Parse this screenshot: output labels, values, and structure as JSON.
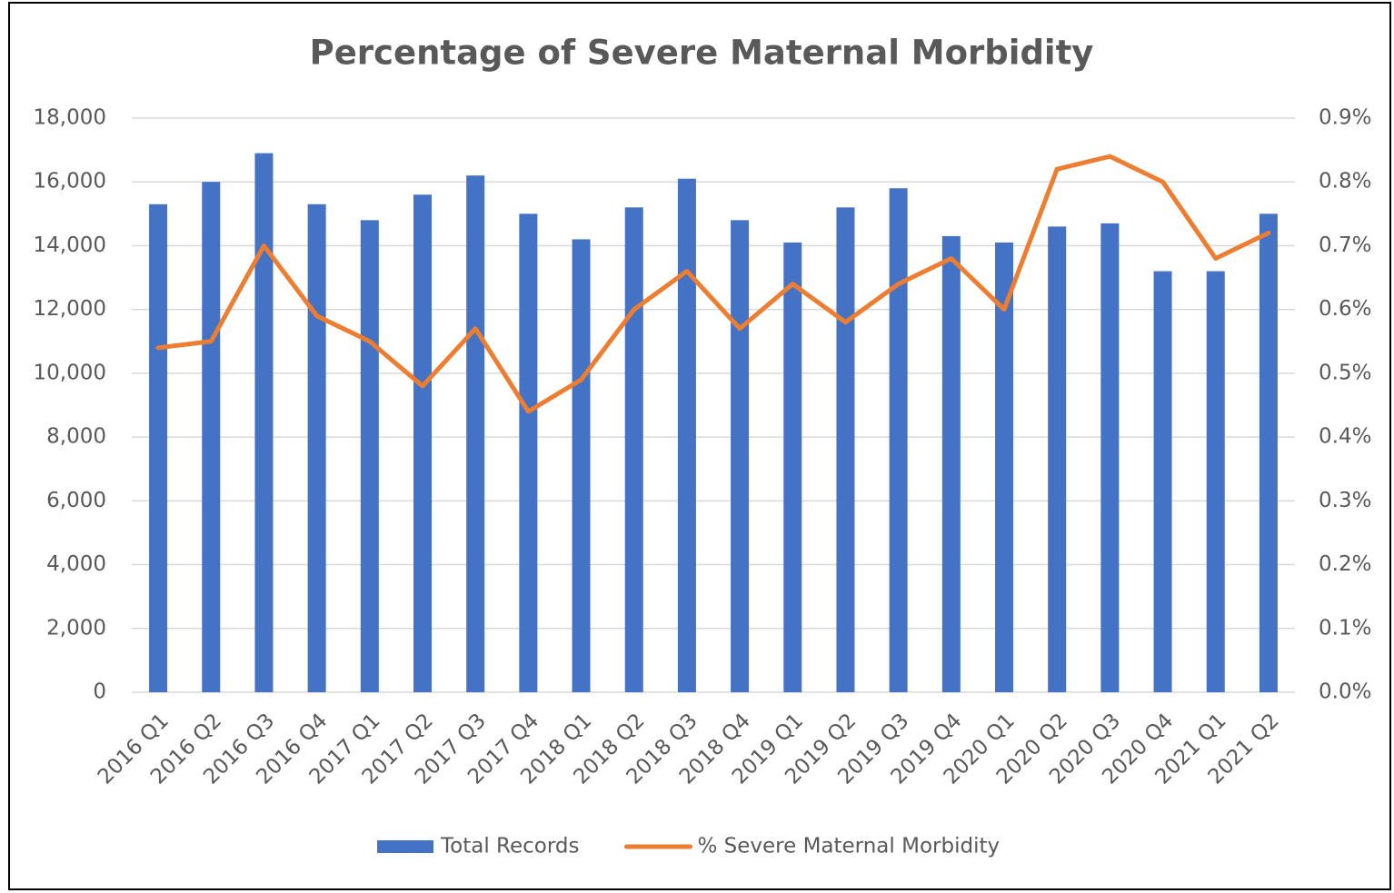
{
  "chart_data": {
    "type": "bar_line",
    "title": "Percentage of Severe Maternal Morbidity",
    "categories": [
      "2016 Q1",
      "2016 Q2",
      "2016 Q3",
      "2016 Q4",
      "2017 Q1",
      "2017 Q2",
      "2017 Q3",
      "2017 Q4",
      "2018 Q1",
      "2018 Q2",
      "2018 Q3",
      "2018 Q4",
      "2019 Q1",
      "2019 Q2",
      "2019 Q3",
      "2019 Q4",
      "2020 Q1",
      "2020 Q2",
      "2020 Q3",
      "2020 Q4",
      "2021 Q1",
      "2021 Q2"
    ],
    "series": [
      {
        "name": "Total Records",
        "type": "bar",
        "color": "#4472c4",
        "axis": "y",
        "values": [
          15300,
          16000,
          16900,
          15300,
          14800,
          15600,
          16200,
          15000,
          14200,
          15200,
          16100,
          14800,
          14100,
          15200,
          15800,
          14300,
          14100,
          14600,
          14700,
          13200,
          13200,
          15000
        ]
      },
      {
        "name": "% Severe Maternal Morbidity",
        "type": "line",
        "color": "#ed7d31",
        "axis": "y2",
        "values": [
          0.54,
          0.55,
          0.7,
          0.59,
          0.55,
          0.48,
          0.57,
          0.44,
          0.49,
          0.6,
          0.66,
          0.57,
          0.64,
          0.58,
          0.64,
          0.68,
          0.6,
          0.82,
          0.84,
          0.8,
          0.68,
          0.72
        ]
      }
    ],
    "ylim": [
      0,
      18000
    ],
    "yticks": [
      0,
      {
        "value": 2000,
        "label": "2,000"
      },
      {
        "value": 4000,
        "label": "4,000"
      },
      {
        "value": 6000,
        "label": "6,000"
      },
      {
        "value": 8000,
        "label": "8,000"
      },
      {
        "value": 10000,
        "label": "10,000"
      },
      {
        "value": 12000,
        "label": "12,000"
      },
      {
        "value": 14000,
        "label": "14,000"
      },
      {
        "value": 16000,
        "label": "16,000"
      },
      {
        "value": 18000,
        "label": "18,000"
      }
    ],
    "y2lim": [
      0,
      0.9
    ],
    "y2ticks": [
      {
        "value": 0,
        "label": "0.0%"
      },
      {
        "value": 0.1,
        "label": "0.1%"
      },
      {
        "value": 0.2,
        "label": "0.2%"
      },
      {
        "value": 0.3,
        "label": "0.3%"
      },
      {
        "value": 0.4,
        "label": "0.4%"
      },
      {
        "value": 0.5,
        "label": "0.5%"
      },
      {
        "value": 0.6,
        "label": "0.6%"
      },
      {
        "value": 0.7,
        "label": "0.7%"
      },
      {
        "value": 0.8,
        "label": "0.8%"
      },
      {
        "value": 0.9,
        "label": "0.9%"
      }
    ],
    "grid": true,
    "legend": "bottom"
  }
}
